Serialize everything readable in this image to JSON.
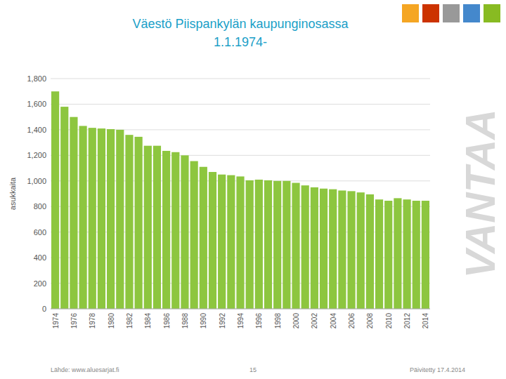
{
  "chart_data": {
    "type": "bar",
    "title": "Väestö Piispankylän kaupunginosassa",
    "subtitle": "1.1.1974-",
    "ylabel": "asukkaita",
    "annotations": [
      "Lähde: www.aluesarjat.fi",
      "15",
      "Päivitetty 17.4.2014",
      "VANTAA"
    ],
    "categories": [
      "1974",
      null,
      "1976",
      null,
      "1978",
      null,
      "1980",
      null,
      "1982",
      null,
      "1984",
      null,
      "1986",
      null,
      "1988",
      null,
      "1990",
      null,
      "1992",
      null,
      "1994",
      null,
      "1996",
      null,
      "1998",
      null,
      "2000",
      null,
      "2002",
      null,
      "2004",
      null,
      "2006",
      null,
      "2008",
      null,
      "2010",
      null,
      "2012",
      null,
      "2014"
    ],
    "values": [
      1700,
      1580,
      1500,
      1430,
      1415,
      1410,
      1405,
      1400,
      1360,
      1345,
      1275,
      1275,
      1235,
      1225,
      1200,
      1155,
      1110,
      1070,
      1050,
      1045,
      1035,
      1005,
      1010,
      1005,
      1000,
      1000,
      985,
      965,
      950,
      940,
      935,
      925,
      920,
      910,
      895,
      855,
      845,
      865,
      855,
      845,
      845
    ],
    "color": "#8dc63f",
    "ylim": [
      0,
      1800
    ],
    "yticks": [
      0,
      200,
      400,
      600,
      800,
      {
        "value": 1000,
        "label": "1,000"
      },
      {
        "value": 1200,
        "label": "1,200"
      },
      {
        "value": 1400,
        "label": "1,400"
      },
      {
        "value": 1600,
        "label": "1,600"
      },
      {
        "value": 1800,
        "label": "1,800"
      }
    ],
    "grid": true
  }
}
